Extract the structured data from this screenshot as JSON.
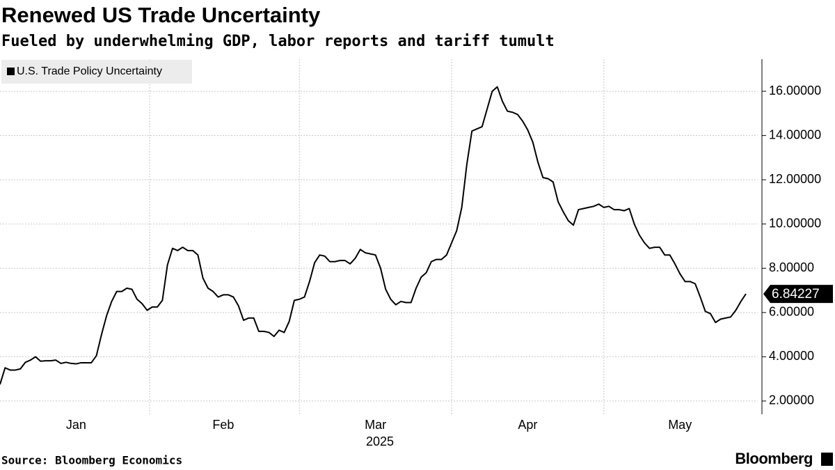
{
  "chart_data": {
    "type": "line",
    "title": "Renewed US Trade Uncertainty",
    "subtitle": "Fueled by underwhelming GDP, labor reports and tariff tumult",
    "source": "Source: Bloomberg Economics",
    "brand": "Bloomberg",
    "xlabel": "2025",
    "categories": [
      null,
      null,
      null,
      null,
      null,
      null,
      null,
      null,
      null,
      null,
      null,
      null,
      null,
      null,
      null,
      "Jan",
      null,
      null,
      null,
      null,
      null,
      null,
      null,
      null,
      null,
      null,
      null,
      null,
      null,
      null,
      null,
      null,
      null,
      null,
      null,
      null,
      null,
      null,
      null,
      null,
      null,
      null,
      null,
      null,
      "Feb",
      null,
      null,
      null,
      null,
      null,
      null,
      null,
      null,
      null,
      null,
      null,
      null,
      null,
      null,
      null,
      null,
      null,
      null,
      null,
      null,
      null,
      null,
      null,
      null,
      null,
      null,
      null,
      null,
      null,
      "Mar",
      null,
      null,
      null,
      null,
      null,
      null,
      null,
      null,
      null,
      null,
      null,
      null,
      null,
      null,
      null,
      null,
      null,
      null,
      null,
      null,
      null,
      null,
      null,
      null,
      null,
      null,
      null,
      null,
      null,
      "Apr",
      null,
      null,
      null,
      null,
      null,
      null,
      null,
      null,
      null,
      null,
      null,
      null,
      null,
      null,
      null,
      null,
      null,
      null,
      null,
      null,
      null,
      null,
      null,
      null,
      null,
      null,
      null,
      null,
      null,
      "May",
      null,
      null,
      null,
      null,
      null,
      null,
      null,
      null,
      null,
      null,
      null,
      null,
      null
    ],
    "series": [
      {
        "name": "U.S. Trade Policy Uncertainty",
        "color": "#000000",
        "values": [
          2.75,
          3.5,
          3.4,
          3.4,
          3.45,
          3.75,
          3.85,
          4.0,
          3.8,
          3.82,
          3.82,
          3.85,
          3.7,
          3.75,
          3.7,
          3.68,
          3.73,
          3.73,
          3.73,
          4.05,
          5.0,
          5.85,
          6.5,
          6.95,
          6.95,
          7.1,
          7.05,
          6.6,
          6.4,
          6.1,
          6.25,
          6.25,
          6.55,
          8.15,
          8.9,
          8.8,
          8.95,
          8.8,
          8.8,
          8.6,
          7.55,
          7.1,
          6.95,
          6.7,
          6.8,
          6.8,
          6.7,
          6.3,
          5.65,
          5.75,
          5.75,
          5.15,
          5.15,
          5.1,
          4.92,
          5.2,
          5.1,
          5.6,
          6.55,
          6.6,
          6.7,
          7.4,
          8.25,
          8.6,
          8.55,
          8.3,
          8.3,
          8.35,
          8.35,
          8.2,
          8.45,
          8.85,
          8.7,
          8.65,
          8.6,
          8.0,
          7.05,
          6.6,
          6.35,
          6.5,
          6.45,
          6.45,
          7.1,
          7.6,
          7.8,
          8.3,
          8.4,
          8.4,
          8.6,
          9.15,
          9.7,
          10.75,
          12.7,
          14.2,
          14.3,
          14.4,
          15.2,
          16.0,
          16.2,
          15.55,
          15.1,
          15.05,
          14.95,
          14.65,
          14.25,
          13.7,
          12.8,
          12.1,
          12.05,
          11.9,
          11.0,
          10.55,
          10.15,
          9.95,
          10.65,
          10.7,
          10.75,
          10.8,
          10.9,
          10.75,
          10.8,
          10.65,
          10.65,
          10.6,
          10.7,
          10.0,
          9.5,
          9.15,
          8.9,
          8.95,
          8.95,
          8.6,
          8.6,
          8.2,
          7.75,
          7.4,
          7.4,
          7.3,
          6.7,
          6.05,
          5.95,
          5.55,
          5.7,
          5.75,
          5.8,
          6.1,
          6.5,
          6.84227
        ]
      }
    ],
    "ylim": [
      1.4,
      17.45
    ],
    "yticks": [
      {
        "value": 2,
        "label": "2.00000"
      },
      {
        "value": 4,
        "label": "4.00000"
      },
      {
        "value": 6,
        "label": "6.00000"
      },
      {
        "value": 8,
        "label": "8.00000"
      },
      {
        "value": 10,
        "label": "10.00000"
      },
      {
        "value": 12,
        "label": "12.00000"
      },
      {
        "value": 14,
        "label": "14.00000"
      },
      {
        "value": 16,
        "label": "16.00000"
      }
    ],
    "grid": true,
    "legend": "top-left"
  }
}
